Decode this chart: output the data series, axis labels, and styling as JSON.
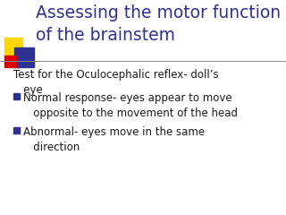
{
  "title_line1": "Assessing the motor function",
  "title_line2": "of the brainstem",
  "title_color": "#2E3192",
  "background_color": "#FFFFFF",
  "separator_color": "#888888",
  "body_text_intro": "Test for the Oculocephalic reflex- doll’s\n   eye",
  "bullets": [
    "Normal response- eyes appear to move\n   opposite to the movement of the head",
    "Abnormal- eyes move in the same\n   direction"
  ],
  "body_font_size": 8.5,
  "title_font_size": 13.5,
  "bullet_marker_color": "#2E3192",
  "corner_colors": {
    "yellow": "#FFD700",
    "blue": "#2E3192",
    "red": "#DD0000"
  }
}
